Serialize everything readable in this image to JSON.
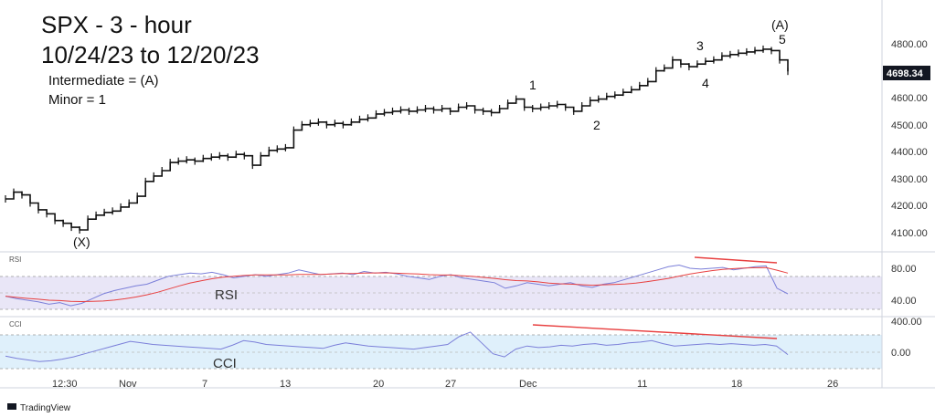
{
  "header": {
    "title_line1": "SPX - 3 - hour",
    "title_line2": "10/24/23 to 12/20/23",
    "label_intermediate": "Intermediate = (A)",
    "label_minor": "Minor = 1"
  },
  "waves": {
    "x": "(X)",
    "w1": "1",
    "w2": "2",
    "w3": "3",
    "w4": "4",
    "w5": "5",
    "a": "(A)"
  },
  "last_price": "4698.34",
  "x_ticks": [
    "12:30",
    "Nov",
    "7",
    "13",
    "20",
    "27",
    "Dec",
    "11",
    "18",
    "26"
  ],
  "price_ticks": [
    "4100.00",
    "4200.00",
    "4300.00",
    "4400.00",
    "4500.00",
    "4600.00",
    "4700.00",
    "4800.00"
  ],
  "rsi": {
    "panel_tag": "RSI",
    "label": "RSI",
    "ticks": [
      "80.00",
      "40.00"
    ]
  },
  "cci": {
    "panel_tag": "CCI",
    "label": "CCI",
    "ticks": [
      "400.00",
      "0.00"
    ]
  },
  "footer": {
    "brand": "TradingView"
  },
  "colors": {
    "price": "#111111",
    "indicator": "#7b7fd9",
    "signal": "#e84040",
    "divergence": "#e84040",
    "rsi_band": "#e9e6f7",
    "cci_band": "#dff0fb"
  },
  "chart_data": {
    "type": "line",
    "title": "SPX - 3 - hour",
    "subtitle": "10/24/23 to 12/20/23",
    "x_axis": [
      "12:30",
      "Nov",
      "7",
      "13",
      "20",
      "27",
      "Dec",
      "11",
      "18",
      "26"
    ],
    "y_range": [
      4050,
      4850
    ],
    "series": [
      {
        "values": [
          4225,
          4250,
          4240,
          4210,
          4185,
          4170,
          4145,
          4135,
          4120,
          4110,
          4150,
          4165,
          4175,
          4180,
          4195,
          4210,
          4235,
          4290,
          4310,
          4330,
          4360,
          4365,
          4370,
          4365,
          4375,
          4380,
          4385,
          4380,
          4390,
          4385,
          4350,
          4385,
          4405,
          4410,
          4415,
          4480,
          4500,
          4505,
          4510,
          4500,
          4505,
          4500,
          4510,
          4520,
          4525,
          4540,
          4545,
          4550,
          4555,
          4550,
          4555,
          4560,
          4555,
          4560,
          4550,
          4565,
          4570,
          4555,
          4550,
          4545,
          4560,
          4580,
          4595,
          4565,
          4560,
          4565,
          4570,
          4575,
          4565,
          4550,
          4570,
          4590,
          4595,
          4605,
          4610,
          4620,
          4630,
          4645,
          4660,
          4700,
          4710,
          4740,
          4725,
          4715,
          4725,
          4735,
          4740,
          4755,
          4760,
          4765,
          4770,
          4775,
          4780,
          4775,
          4740,
          4698
        ]
      },
      {
        "name": "RSI",
        "values": [
          45,
          42,
          40,
          38,
          35,
          37,
          33,
          36,
          42,
          48,
          52,
          55,
          58,
          60,
          65,
          70,
          72,
          74,
          73,
          75,
          72,
          68,
          70,
          72,
          70,
          72,
          74,
          78,
          75,
          72,
          73,
          74,
          72,
          76,
          74,
          75,
          73,
          70,
          68,
          66,
          70,
          72,
          68,
          66,
          64,
          62,
          55,
          58,
          62,
          60,
          58,
          60,
          62,
          58,
          56,
          60,
          62,
          66,
          70,
          74,
          78,
          82,
          84,
          80,
          79,
          80,
          81,
          78,
          80,
          82,
          83,
          55,
          48
        ]
      },
      {
        "name": "CCI",
        "values": [
          -50,
          -80,
          -100,
          -120,
          -110,
          -90,
          -60,
          -20,
          20,
          60,
          100,
          140,
          120,
          100,
          90,
          80,
          70,
          60,
          50,
          40,
          90,
          150,
          130,
          100,
          90,
          80,
          70,
          60,
          50,
          90,
          120,
          100,
          80,
          70,
          60,
          50,
          40,
          60,
          80,
          100,
          200,
          260,
          120,
          -20,
          -60,
          40,
          80,
          60,
          70,
          90,
          80,
          100,
          110,
          90,
          100,
          120,
          130,
          150,
          110,
          80,
          90,
          100,
          110,
          100,
          110,
          100,
          90,
          100,
          80,
          -30
        ]
      }
    ]
  }
}
